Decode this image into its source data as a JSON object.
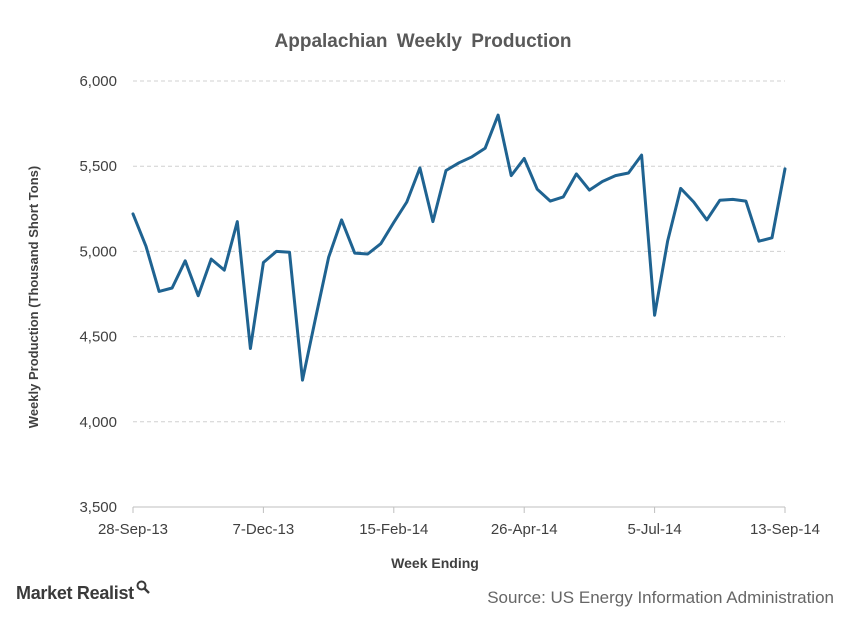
{
  "chart_data": {
    "type": "line",
    "title": "Appalachian  Weekly  Production",
    "xlabel": "Week Ending",
    "ylabel": "Weekly Production (Thousand Short Tons)",
    "ylim": [
      3500,
      6000
    ],
    "yticks": [
      3500,
      4000,
      4500,
      5000,
      5500,
      6000
    ],
    "ytick_labels": [
      "3,500",
      "4,000",
      "4,500",
      "5,000",
      "5,500",
      "6,000"
    ],
    "xtick_labels": [
      "28-Sep-13",
      "7-Dec-13",
      "15-Feb-14",
      "26-Apr-14",
      "5-Jul-14",
      "13-Sep-14"
    ],
    "x_start": "2013-09-28",
    "x_interval_weeks": 1,
    "grid": "horizontal dashed",
    "series": [
      {
        "color": "#1f6391",
        "values": [
          5220,
          5030,
          4765,
          4785,
          4945,
          4740,
          4955,
          4890,
          5175,
          4430,
          4935,
          5000,
          4995,
          4245,
          4610,
          4965,
          5185,
          4990,
          4985,
          5045,
          5170,
          5290,
          5490,
          5175,
          5475,
          5520,
          5555,
          5605,
          5800,
          5445,
          5545,
          5365,
          5295,
          5320,
          5455,
          5360,
          5410,
          5445,
          5460,
          5565,
          4625,
          5060,
          5370,
          5290,
          5185,
          5300,
          5305,
          5295,
          5060,
          5080,
          5485
        ]
      }
    ]
  },
  "footer": {
    "brand": "Market Realist",
    "source": "Source: US Energy Information Administration"
  }
}
